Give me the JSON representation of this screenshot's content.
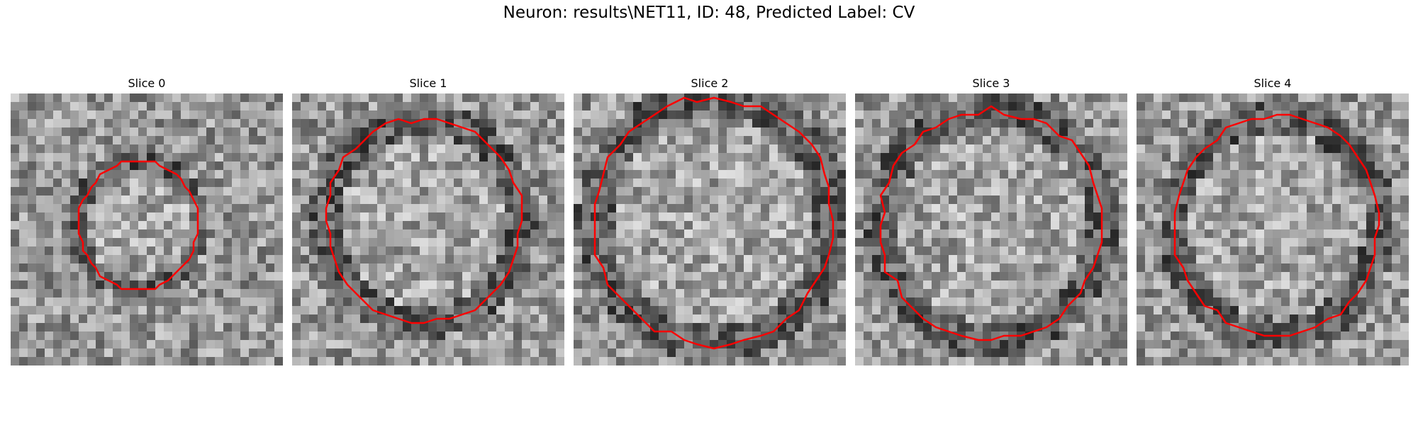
{
  "figure": {
    "title": "Neuron: results\\NET11, ID: 48, Predicted Label: CV"
  },
  "slices": [
    {
      "title": "Slice 0"
    },
    {
      "title": "Slice 1"
    },
    {
      "title": "Slice 2"
    },
    {
      "title": "Slice 3"
    },
    {
      "title": "Slice 4"
    }
  ],
  "colors": {
    "contour": "#ff0000",
    "colormap": "gray"
  }
}
